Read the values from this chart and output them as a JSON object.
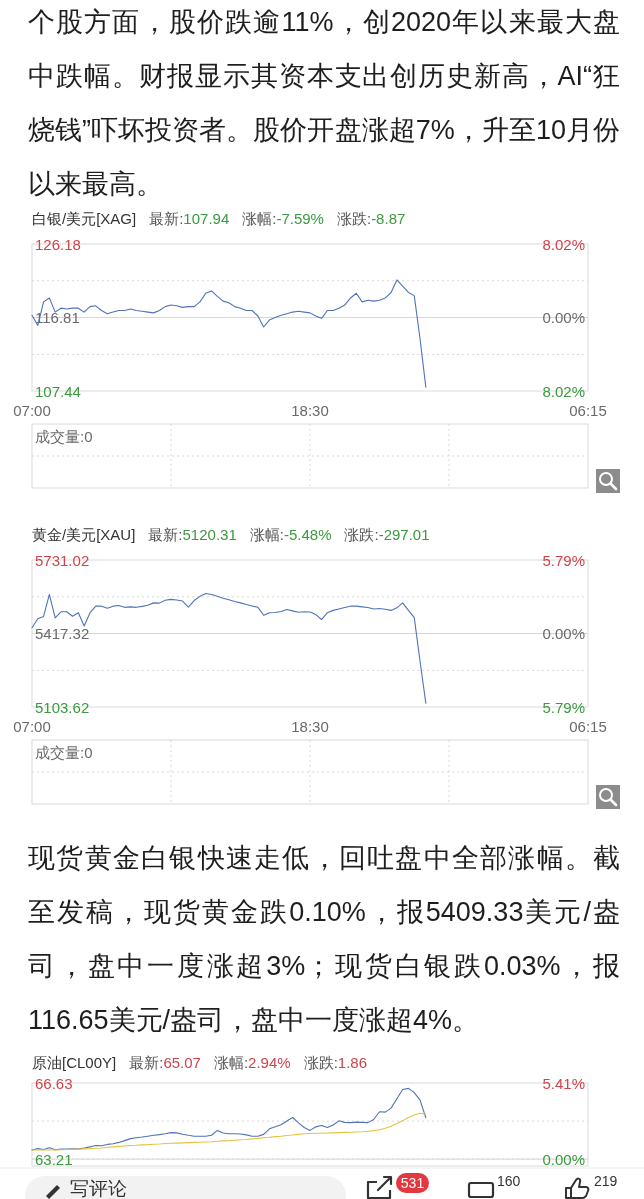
{
  "chart_data": [
    {
      "type": "other",
      "annotations": [
        "个股方面，股价跌逾11%，创2020年以来最大盘中跌幅。财报显示其资本支出创历史新高，AI“狂烧钱”吓坏投资者。股价开盘涨超7%，升至10月份以来最高。"
      ]
    },
    {
      "type": "line",
      "title": "白银/美元[XAG]",
      "annotations": [
        "最新:107.94",
        "涨幅:-7.59%",
        "涨跌:-8.87"
      ],
      "categories": [
        "07:00",
        null,
        null,
        null,
        null,
        null,
        null,
        null,
        null,
        null,
        null,
        null,
        null,
        null,
        null,
        null,
        null,
        null,
        null,
        null,
        null,
        null,
        null,
        null,
        null,
        null,
        null,
        null,
        null,
        null,
        null,
        null,
        null,
        null,
        null,
        null,
        null,
        null,
        null,
        null,
        null,
        null,
        null,
        null,
        null,
        null,
        null,
        null,
        "18:30",
        null,
        null,
        null,
        null,
        null,
        null,
        null,
        null,
        null,
        null,
        null,
        null,
        null,
        null,
        null,
        null,
        null,
        null,
        null,
        null,
        null,
        null,
        null,
        null,
        null,
        null,
        null,
        null,
        null,
        null,
        null,
        null,
        null,
        null,
        null,
        null,
        null,
        null,
        null,
        null,
        null,
        null,
        null,
        null,
        null,
        null,
        null,
        "06:15"
      ],
      "series": [
        {
          "color": "#4f74b8",
          "values": [
            117.1,
            115.8,
            118.8,
            119.3,
            117.5,
            118.0,
            117.9,
            118.0,
            118.0,
            117.5,
            118.2,
            118.3,
            117.7,
            117.3,
            117.5,
            117.7,
            117.7,
            117.9,
            117.7,
            117.6,
            117.5,
            117.4,
            117.7,
            118.2,
            118.4,
            118.3,
            118.1,
            118.2,
            118.2,
            118.8,
            119.9,
            120.2,
            119.5,
            118.9,
            118.7,
            118.2,
            118.0,
            117.7,
            117.7,
            117.0,
            115.6,
            116.5,
            116.8,
            117.1,
            117.3,
            117.5,
            117.6,
            117.5,
            117.4,
            117.0,
            116.7,
            117.7,
            117.7,
            118.0,
            118.4,
            119.3,
            119.9,
            118.8,
            119.0,
            118.9,
            119.0,
            119.3,
            120.0,
            121.6,
            120.8,
            120.0,
            119.6,
            114.1,
            107.94,
            null,
            null,
            null,
            null,
            null,
            null,
            null,
            null,
            null,
            null,
            null,
            null,
            null,
            null,
            null,
            null,
            null,
            null,
            null,
            null,
            null,
            null,
            null,
            null,
            null,
            null,
            null,
            null
          ]
        }
      ],
      "ylim": [
        107.44,
        126.18
      ],
      "yticks": [
        126.18,
        {
          "value": 121.5,
          "label": null
        },
        116.81,
        {
          "value": 112.1,
          "label": null
        },
        107.44
      ],
      "y2lim": [
        -8.02,
        8.02
      ],
      "y2ticks": [
        {
          "value": 8.02,
          "label": "8.02%"
        },
        {
          "value": 0,
          "label": "0.00%"
        },
        {
          "value": -8.02,
          "label": "8.02%"
        }
      ],
      "grid": "y",
      "ref_lines": [
        {
          "axis": "y",
          "value": 116.81,
          "color": "#d6d6d6"
        }
      ]
    },
    {
      "type": "other",
      "annotations": [
        "成交量:0"
      ]
    },
    {
      "type": "line",
      "title": "黄金/美元[XAU]",
      "annotations": [
        "最新:5120.31",
        "涨幅:-5.48%",
        "涨跌:-297.01"
      ],
      "categories": [
        "07:00",
        null,
        null,
        null,
        null,
        null,
        null,
        null,
        null,
        null,
        null,
        null,
        null,
        null,
        null,
        null,
        null,
        null,
        null,
        null,
        null,
        null,
        null,
        null,
        null,
        null,
        null,
        null,
        null,
        null,
        null,
        null,
        null,
        null,
        null,
        null,
        null,
        null,
        null,
        null,
        null,
        null,
        null,
        null,
        null,
        null,
        null,
        null,
        "18:30",
        null,
        null,
        null,
        null,
        null,
        null,
        null,
        null,
        null,
        null,
        null,
        null,
        null,
        null,
        null,
        null,
        null,
        null,
        null,
        null,
        null,
        null,
        null,
        null,
        null,
        null,
        null,
        null,
        null,
        null,
        null,
        null,
        null,
        null,
        null,
        null,
        null,
        null,
        null,
        null,
        null,
        null,
        null,
        null,
        null,
        null,
        null,
        "06:15"
      ],
      "series": [
        {
          "color": "#4f74b8",
          "values": [
            5442,
            5480,
            5490,
            5584,
            5484,
            5510,
            5510,
            5491,
            5506,
            5449,
            5505,
            5534,
            5534,
            5525,
            5534,
            5537,
            5529,
            5531,
            5529,
            5533,
            5538,
            5548,
            5547,
            5559,
            5563,
            5560,
            5556,
            5530,
            5558,
            5576,
            5588,
            5584,
            5576,
            5568,
            5561,
            5554,
            5548,
            5541,
            5535,
            5529,
            5495,
            5506,
            5507,
            5511,
            5520,
            5514,
            5508,
            5510,
            5509,
            5498,
            5477,
            5506,
            5516,
            5522,
            5528,
            5534,
            5534,
            5531,
            5528,
            5522,
            5524,
            5521,
            5516,
            5527,
            5548,
            5516,
            5485,
            5299,
            5120.31,
            null,
            null,
            null,
            null,
            null,
            null,
            null,
            null,
            null,
            null,
            null,
            null,
            null,
            null,
            null,
            null,
            null,
            null,
            null,
            null,
            null,
            null,
            null,
            null,
            null,
            null,
            null,
            null
          ]
        }
      ],
      "ylim": [
        5103.62,
        5731.02
      ],
      "yticks": [
        5731.02,
        {
          "value": 5574,
          "label": null
        },
        5417.32,
        {
          "value": 5260,
          "label": null
        },
        5103.62
      ],
      "y2lim": [
        -5.79,
        5.79
      ],
      "y2ticks": [
        {
          "value": 5.79,
          "label": "5.79%"
        },
        {
          "value": 0,
          "label": "0.00%"
        },
        {
          "value": -5.79,
          "label": "5.79%"
        }
      ],
      "grid": "y",
      "ref_lines": [
        {
          "axis": "y",
          "value": 5417.32,
          "color": "#d6d6d6"
        }
      ]
    },
    {
      "type": "other",
      "annotations": [
        "成交量:0"
      ]
    },
    {
      "type": "other",
      "annotations": [
        "现货黄金白银快速走低，回吐盘中全部涨幅。截至发稿，现货黄金跌0.10%，报5409.33美元/盎司，盘中一度涨超3%；现货白银跌0.03%，报116.65美元/盎司，盘中一度涨超4%。"
      ]
    },
    {
      "type": "line",
      "title": "原油[CL00Y]",
      "annotations": [
        "最新:65.07",
        "涨幅:2.94%",
        "涨跌:1.86"
      ],
      "categories": [
        null,
        null,
        null,
        null,
        null,
        null,
        null,
        null,
        null,
        null,
        null,
        null,
        null,
        null,
        null,
        null,
        null,
        null,
        null,
        null,
        null,
        null,
        null,
        null,
        null,
        null,
        null,
        null,
        null,
        null,
        null,
        null,
        null,
        null,
        null,
        null,
        null,
        null,
        null,
        null,
        null,
        null,
        null,
        null,
        null,
        null,
        null,
        null,
        null,
        null,
        null,
        null,
        null,
        null,
        null,
        null,
        null,
        null,
        null,
        null,
        null,
        null,
        null,
        null,
        null,
        null,
        null,
        null,
        null,
        null,
        null,
        null,
        null,
        null,
        null,
        null,
        null,
        null,
        null,
        null,
        null,
        null,
        null,
        null,
        null,
        null,
        null,
        null,
        null,
        null,
        null,
        null,
        null,
        null,
        null,
        null,
        null
      ],
      "series": [
        {
          "color": "#4f74b8",
          "values": [
            63.62,
            63.68,
            63.64,
            63.72,
            63.63,
            63.66,
            63.66,
            63.67,
            63.67,
            63.71,
            63.76,
            63.82,
            63.81,
            63.87,
            63.9,
            63.96,
            64.04,
            64.13,
            64.17,
            64.2,
            64.24,
            64.28,
            64.31,
            64.35,
            64.4,
            64.39,
            64.33,
            64.28,
            64.24,
            64.24,
            64.24,
            64.28,
            64.5,
            64.38,
            64.35,
            64.35,
            64.34,
            64.3,
            64.24,
            64.24,
            64.32,
            64.57,
            64.66,
            64.75,
            64.92,
            65.08,
            64.84,
            64.63,
            64.5,
            64.66,
            64.72,
            64.63,
            64.74,
            64.93,
            64.86,
            64.85,
            64.87,
            64.86,
            64.85,
            64.99,
            65.34,
            65.32,
            65.5,
            65.92,
            66.34,
            66.39,
            66.2,
            65.86,
            65.07,
            null,
            null,
            null,
            null,
            null,
            null,
            null,
            null,
            null,
            null,
            null,
            null,
            null,
            null,
            null,
            null,
            null,
            null,
            null,
            null,
            null,
            null,
            null,
            null,
            null,
            null,
            null,
            null
          ]
        },
        {
          "color": "#e6c240",
          "values": [
            63.62,
            63.62,
            63.62,
            63.62,
            63.62,
            63.63,
            63.64,
            63.65,
            63.66,
            63.67,
            63.68,
            63.7,
            63.71,
            63.74,
            63.76,
            63.78,
            63.8,
            63.82,
            63.83,
            63.85,
            63.86,
            63.88,
            63.89,
            63.91,
            63.92,
            63.93,
            63.94,
            63.95,
            63.96,
            63.97,
            63.98,
            63.99,
            64.01,
            64.03,
            64.04,
            64.06,
            64.08,
            64.09,
            64.12,
            64.14,
            64.17,
            64.19,
            64.22,
            64.24,
            64.27,
            64.29,
            64.32,
            64.35,
            64.36,
            64.37,
            64.37,
            64.38,
            64.39,
            64.4,
            64.41,
            64.42,
            64.43,
            64.44,
            64.46,
            64.49,
            64.53,
            64.6,
            64.69,
            64.81,
            64.94,
            65.08,
            65.19,
            65.27,
            65.23,
            null,
            null,
            null,
            null,
            null,
            null,
            null,
            null,
            null,
            null,
            null,
            null,
            null,
            null,
            null,
            null,
            null,
            null,
            null,
            null,
            null,
            null,
            null,
            null,
            null,
            null,
            null,
            null
          ]
        }
      ],
      "ylim": [
        62.9,
        66.63
      ],
      "yticks": [
        66.63,
        {
          "value": 64.92,
          "label": null
        },
        63.21
      ],
      "y2lim": [
        -0.49,
        5.41
      ],
      "y2ticks": [
        {
          "value": 5.41,
          "label": "5.41%"
        },
        {
          "value": 0,
          "label": "0.00%"
        }
      ],
      "grid": "y",
      "ref_lines": [
        {
          "axis": "y",
          "value": 63.21,
          "color": "#d6d6d6"
        }
      ]
    },
    {
      "type": "other",
      "annotations": [
        "写评论",
        "531",
        "160",
        "219"
      ]
    }
  ]
}
